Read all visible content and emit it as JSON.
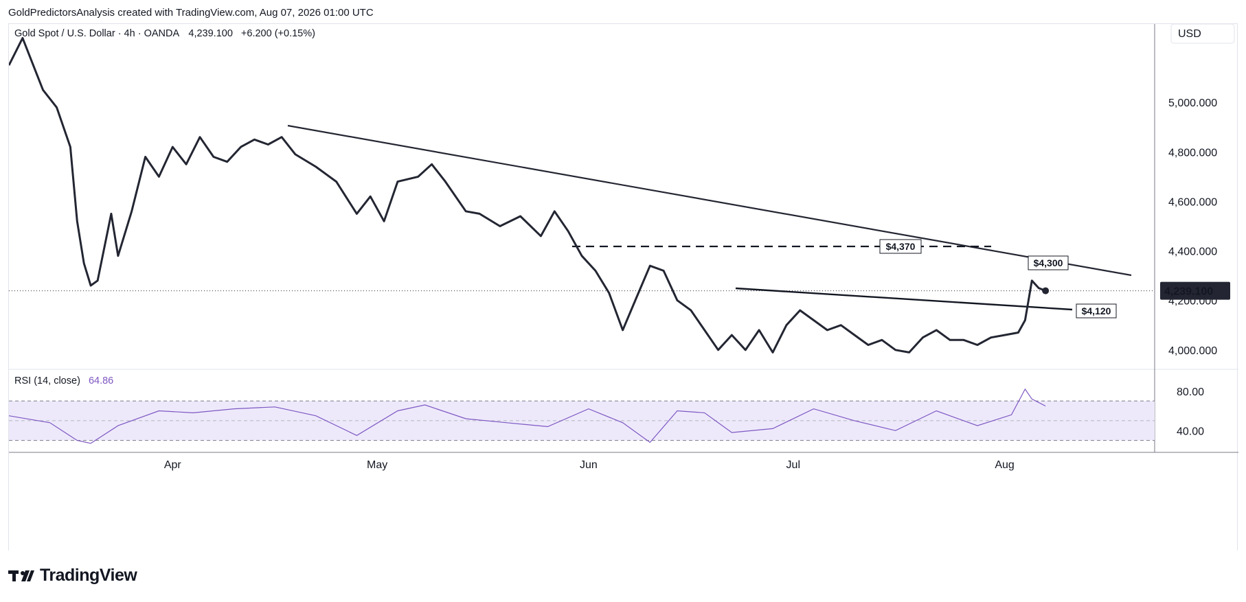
{
  "header": {
    "text": "GoldPredictorsAnalysis created with TradingView.com, Aug 07, 2026 01:00 UTC"
  },
  "legend": {
    "symbol": "Gold Spot / U.S. Dollar · 4h · OANDA",
    "last": "4,239.100",
    "change": "+6.200 (+0.15%)"
  },
  "price_axis": {
    "currency": "USD",
    "ticks": [
      "5,000.000",
      "4,800.000",
      "4,600.000",
      "4,400.000",
      "4,200.000",
      "4,000.000"
    ],
    "last_price_label": "4,239.100"
  },
  "time_axis": {
    "labels": [
      "Apr",
      "May",
      "Jun",
      "Jul",
      "Aug"
    ]
  },
  "rsi": {
    "title": "RSI (14, close)",
    "value": "64.86",
    "ticks": [
      "80.00",
      "40.00"
    ],
    "line_color": "#7e57c2",
    "band_color": "#ede9fb"
  },
  "annotations": {
    "resistance_label": "$4,370",
    "trendline_label": "$4,300",
    "support_label": "$4,120"
  },
  "footer": {
    "brand": "TradingView"
  },
  "colors": {
    "price_line": "#232632",
    "grid": "#e0e3eb",
    "last_price_bg": "#232632"
  },
  "chart_data": [
    {
      "type": "line",
      "name": "price",
      "ylim": [
        3930,
        5300
      ],
      "y_ticks": [
        4000,
        4200,
        4400,
        4600,
        4800,
        5000
      ],
      "x": [
        "2026-03-08",
        "2026-03-10",
        "2026-03-12",
        "2026-03-13",
        "2026-03-15",
        "2026-03-17",
        "2026-03-18",
        "2026-03-19",
        "2026-03-20",
        "2026-03-21",
        "2026-03-23",
        "2026-03-24",
        "2026-03-26",
        "2026-03-28",
        "2026-03-30",
        "2026-04-01",
        "2026-04-03",
        "2026-04-05",
        "2026-04-07",
        "2026-04-09",
        "2026-04-11",
        "2026-04-13",
        "2026-04-15",
        "2026-04-17",
        "2026-04-19",
        "2026-04-22",
        "2026-04-25",
        "2026-04-28",
        "2026-04-30",
        "2026-05-02",
        "2026-05-04",
        "2026-05-07",
        "2026-05-09",
        "2026-05-11",
        "2026-05-14",
        "2026-05-16",
        "2026-05-19",
        "2026-05-22",
        "2026-05-25",
        "2026-05-27",
        "2026-05-29",
        "2026-05-31",
        "2026-06-02",
        "2026-06-04",
        "2026-06-06",
        "2026-06-08",
        "2026-06-10",
        "2026-06-12",
        "2026-06-14",
        "2026-06-16",
        "2026-06-18",
        "2026-06-20",
        "2026-06-22",
        "2026-06-24",
        "2026-06-26",
        "2026-06-28",
        "2026-06-30",
        "2026-07-02",
        "2026-07-04",
        "2026-07-06",
        "2026-07-08",
        "2026-07-10",
        "2026-07-12",
        "2026-07-14",
        "2026-07-16",
        "2026-07-18",
        "2026-07-20",
        "2026-07-22",
        "2026-07-24",
        "2026-07-26",
        "2026-07-28",
        "2026-07-30",
        "2026-08-01",
        "2026-08-03",
        "2026-08-04",
        "2026-08-05",
        "2026-08-06",
        "2026-08-07"
      ],
      "values": [
        5150,
        5260,
        5120,
        5050,
        4980,
        4820,
        4520,
        4350,
        4260,
        4280,
        4550,
        4380,
        4560,
        4780,
        4700,
        4820,
        4750,
        4860,
        4780,
        4760,
        4820,
        4850,
        4830,
        4860,
        4790,
        4740,
        4680,
        4550,
        4620,
        4520,
        4680,
        4700,
        4750,
        4680,
        4560,
        4550,
        4500,
        4540,
        4460,
        4560,
        4480,
        4380,
        4320,
        4230,
        4080,
        4210,
        4340,
        4320,
        4200,
        4160,
        4080,
        4000,
        4060,
        4000,
        4080,
        3990,
        4100,
        4160,
        4120,
        4080,
        4100,
        4060,
        4020,
        4040,
        4000,
        3990,
        4050,
        4080,
        4040,
        4040,
        4020,
        4050,
        4060,
        4070,
        4120,
        4280,
        4250,
        4239
      ]
    },
    {
      "type": "line",
      "name": "RSI",
      "ylim": [
        20,
        100
      ],
      "y_ticks": [
        40,
        80
      ],
      "bands": [
        30,
        50,
        70
      ],
      "x": [
        "2026-03-08",
        "2026-03-14",
        "2026-03-18",
        "2026-03-20",
        "2026-03-24",
        "2026-03-30",
        "2026-04-04",
        "2026-04-10",
        "2026-04-16",
        "2026-04-22",
        "2026-04-28",
        "2026-05-04",
        "2026-05-08",
        "2026-05-14",
        "2026-05-20",
        "2026-05-26",
        "2026-06-01",
        "2026-06-06",
        "2026-06-10",
        "2026-06-14",
        "2026-06-18",
        "2026-06-22",
        "2026-06-28",
        "2026-07-04",
        "2026-07-10",
        "2026-07-16",
        "2026-07-22",
        "2026-07-28",
        "2026-08-02",
        "2026-08-04",
        "2026-08-05",
        "2026-08-07"
      ],
      "values": [
        55,
        48,
        30,
        27,
        45,
        60,
        58,
        62,
        64,
        55,
        35,
        60,
        66,
        52,
        48,
        44,
        62,
        48,
        28,
        60,
        58,
        38,
        42,
        62,
        50,
        40,
        60,
        45,
        56,
        82,
        72,
        64.86
      ]
    }
  ]
}
